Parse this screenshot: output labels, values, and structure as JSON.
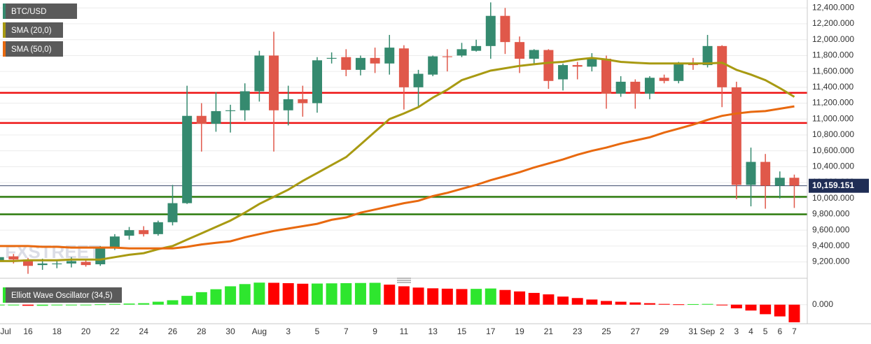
{
  "chart_data": [
    {
      "type": "candlestick",
      "name": "BTC/USD",
      "watermark": "FXSTREET",
      "up_color": "#358a6f",
      "down_color": "#e0584a",
      "categories": [
        "Jul",
        null,
        "16",
        null,
        "18",
        null,
        "20",
        null,
        "22",
        null,
        "24",
        null,
        "26",
        null,
        "28",
        null,
        "30",
        null,
        "Aug",
        null,
        "3",
        null,
        "5",
        null,
        "7",
        null,
        "9",
        null,
        "11",
        null,
        "13",
        null,
        "15",
        null,
        "17",
        null,
        "19",
        null,
        "21",
        null,
        "23",
        null,
        "25",
        null,
        "27",
        null,
        "29",
        null,
        "31",
        "Sep",
        "2",
        "3",
        "4",
        "5",
        "6",
        "7"
      ],
      "open": [
        9200,
        9270,
        9230,
        9160,
        9170,
        9180,
        9200,
        9170,
        9380,
        9530,
        9600,
        9550,
        9700,
        9940,
        11040,
        10940,
        11100,
        11110,
        11350,
        11800,
        11110,
        11250,
        11200,
        11760,
        11780,
        11620,
        11770,
        11700,
        11890,
        11400,
        11560,
        11790,
        11800,
        11860,
        11920,
        12300,
        11970,
        11760,
        11870,
        11500,
        11680,
        11660,
        11760,
        11320,
        11470,
        11320,
        11520,
        11480,
        11700,
        11680,
        11920,
        11400,
        10170,
        10460,
        10160,
        10260
      ],
      "high": [
        9300,
        9300,
        9250,
        9240,
        9230,
        9260,
        9240,
        9400,
        9550,
        9640,
        9650,
        9720,
        10170,
        11420,
        11200,
        11340,
        11180,
        11450,
        11860,
        12100,
        11420,
        11420,
        11780,
        11840,
        11880,
        11800,
        11900,
        12060,
        11930,
        11620,
        11800,
        11880,
        11960,
        12000,
        12470,
        12400,
        12040,
        11880,
        11880,
        11700,
        11720,
        11830,
        11800,
        11540,
        11500,
        11540,
        11560,
        11720,
        11770,
        12060,
        11930,
        11470,
        10640,
        10560,
        10340,
        10300
      ],
      "low": [
        9150,
        9180,
        9050,
        9100,
        9120,
        9130,
        9140,
        9150,
        9350,
        9480,
        9520,
        9530,
        9660,
        9930,
        10590,
        10840,
        10830,
        10980,
        11220,
        10590,
        10920,
        11030,
        11080,
        11700,
        11540,
        11550,
        11580,
        11560,
        11120,
        11150,
        11540,
        11600,
        11780,
        11850,
        11760,
        11820,
        11580,
        11680,
        11380,
        11360,
        11500,
        11600,
        11130,
        11280,
        11130,
        11250,
        11450,
        11450,
        11620,
        11650,
        11150,
        9990,
        9900,
        9870,
        10000,
        9880
      ],
      "close": [
        9260,
        9230,
        9150,
        9180,
        9180,
        9210,
        9160,
        9380,
        9520,
        9600,
        9550,
        9700,
        9940,
        11040,
        10940,
        11100,
        11110,
        11350,
        11800,
        11110,
        11250,
        11200,
        11740,
        11770,
        11620,
        11770,
        11700,
        11900,
        11400,
        11570,
        11790,
        11780,
        11880,
        11920,
        12300,
        11970,
        11760,
        11870,
        11480,
        11680,
        11660,
        11770,
        11320,
        11470,
        11320,
        11520,
        11480,
        11700,
        11680,
        11920,
        11400,
        10170,
        10460,
        10160,
        10260,
        10160
      ],
      "series": [
        {
          "name": "SMA (20,0)",
          "color": "#a89a12",
          "values": [
            9210,
            9210,
            9220,
            9220,
            9220,
            9230,
            9230,
            9230,
            9260,
            9290,
            9310,
            9360,
            9400,
            9480,
            9560,
            9640,
            9720,
            9820,
            9930,
            10020,
            10110,
            10220,
            10320,
            10420,
            10520,
            10680,
            10840,
            11000,
            11070,
            11150,
            11270,
            11370,
            11490,
            11550,
            11610,
            11640,
            11670,
            11690,
            11710,
            11720,
            11750,
            11770,
            11750,
            11720,
            11710,
            11700,
            11700,
            11700,
            11700,
            11700,
            11710,
            11620,
            11560,
            11490,
            11390,
            11280
          ]
        },
        {
          "name": "SMA (50,0)",
          "color": "#e8690f",
          "values": [
            9400,
            9400,
            9400,
            9390,
            9390,
            9380,
            9380,
            9380,
            9380,
            9370,
            9370,
            9370,
            9370,
            9390,
            9420,
            9440,
            9460,
            9510,
            9550,
            9590,
            9620,
            9650,
            9680,
            9730,
            9760,
            9820,
            9860,
            9900,
            9940,
            9970,
            10030,
            10070,
            10120,
            10170,
            10230,
            10280,
            10330,
            10390,
            10440,
            10490,
            10550,
            10600,
            10640,
            10690,
            10730,
            10770,
            10830,
            10880,
            10930,
            10990,
            11040,
            11070,
            11090,
            11100,
            11130,
            11160
          ]
        }
      ],
      "hlines": [
        {
          "value": 11330,
          "color": "#ee1111"
        },
        {
          "value": 10950,
          "color": "#ee1111"
        },
        {
          "value": 10020,
          "color": "#2b7a0b"
        },
        {
          "value": 9800,
          "color": "#2b7a0b"
        }
      ],
      "last_price": {
        "value": 10159.151,
        "label": "10,159.151"
      },
      "ylim": [
        9020,
        12500
      ],
      "yticks": [
        {
          "value": 9200,
          "label": "9,200.000"
        },
        {
          "value": 9400,
          "label": "9,400.000"
        },
        {
          "value": 9600,
          "label": "9,600.000"
        },
        {
          "value": 9800,
          "label": "9,800.000"
        },
        {
          "value": 10000,
          "label": "10,000.000"
        },
        {
          "value": 10200,
          "label": "10,200.000"
        },
        {
          "value": 10400,
          "label": "10,400.000"
        },
        {
          "value": 10600,
          "label": "10,600.000"
        },
        {
          "value": 10800,
          "label": "10,800.000"
        },
        {
          "value": 11000,
          "label": "11,000.000"
        },
        {
          "value": 11200,
          "label": "11,200.000"
        },
        {
          "value": 11400,
          "label": "11,400.000"
        },
        {
          "value": 11600,
          "label": "11,600.000"
        },
        {
          "value": 11800,
          "label": "11,800.000"
        },
        {
          "value": 12000,
          "label": "12,000.000"
        },
        {
          "value": 12200,
          "label": "12,200.000"
        },
        {
          "value": 12400,
          "label": "12,400.000"
        }
      ],
      "grid": true
    },
    {
      "type": "bar",
      "name": "Elliott Wave Oscillator (34,5)",
      "up_color": "#2ee62e",
      "down_color": "#ff0000",
      "values": [
        -40,
        -40,
        -60,
        -60,
        -40,
        -40,
        -20,
        20,
        40,
        60,
        80,
        160,
        240,
        480,
        680,
        840,
        1000,
        1120,
        1200,
        1190,
        1170,
        1140,
        1150,
        1160,
        1170,
        1180,
        1190,
        1090,
        1000,
        930,
        890,
        870,
        850,
        860,
        880,
        800,
        720,
        640,
        560,
        440,
        360,
        280,
        200,
        160,
        120,
        80,
        40,
        20,
        30,
        40,
        -40,
        -200,
        -320,
        -520,
        -640,
        -960
      ],
      "ylim": [
        -1000,
        1360
      ],
      "yticks": [
        {
          "value": 0,
          "label": "0.000"
        }
      ]
    }
  ]
}
